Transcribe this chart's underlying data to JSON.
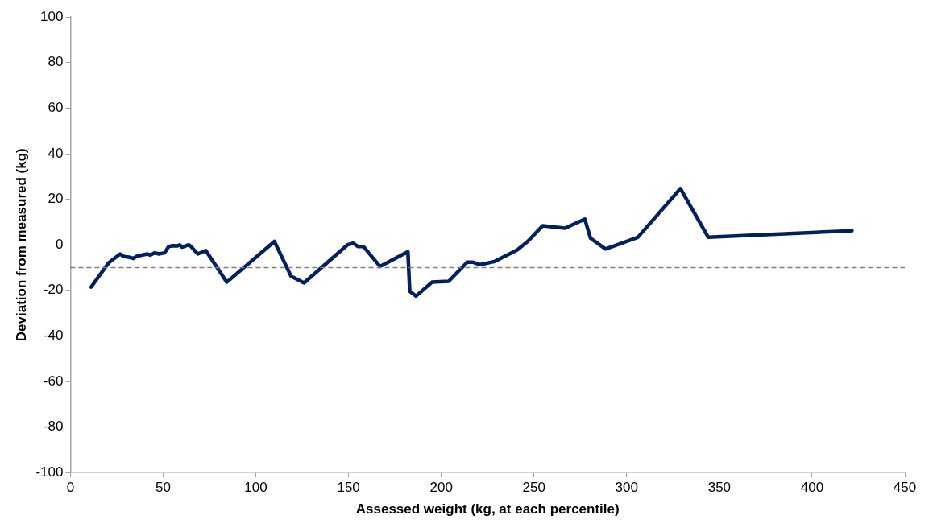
{
  "chart_data": {
    "type": "line",
    "xlabel": "Assessed weight (kg, at each percentile)",
    "ylabel": "Deviation from measured (kg)",
    "series": [
      {
        "color": "#002060",
        "x": [
          11.2,
          20.5,
          26.8,
          28.5,
          32,
          33.9,
          35.7,
          38.4,
          41.5,
          43,
          45.5,
          47.7,
          50.8,
          53,
          55.3,
          57.5,
          58.9,
          60.2,
          63.8,
          65,
          68.7,
          73,
          84.3,
          110,
          119,
          126,
          149.4,
          152.5,
          155,
          158,
          167,
          182,
          183,
          186.4,
          195,
          204,
          214,
          216.8,
          221,
          228.8,
          241,
          246.6,
          254.7,
          266.7,
          277.4,
          280.5,
          288.6,
          306,
          329,
          344,
          421.5
        ],
        "values": [
          -18.5,
          -8,
          -4,
          -5,
          -5.5,
          -6,
          -5,
          -4.5,
          -4,
          -4.5,
          -3.5,
          -4,
          -3.5,
          -0.7,
          -0.4,
          -0.5,
          0,
          -1,
          0,
          -0.7,
          -4,
          -2.5,
          -16.4,
          1.5,
          -13.8,
          -16.7,
          0,
          0.7,
          -0.7,
          -0.7,
          -9.5,
          -3,
          -20.4,
          -22.5,
          -16.4,
          -16,
          -7.6,
          -7.6,
          -8.7,
          -7.3,
          -2.2,
          1.5,
          8.4,
          7.3,
          11.3,
          2.9,
          -1.8,
          3.3,
          24.7,
          3.3,
          6.2
        ]
      }
    ],
    "xlim": [
      0,
      450
    ],
    "xticks": [
      0,
      50,
      100,
      150,
      200,
      250,
      300,
      350,
      400,
      450
    ],
    "ylim": [
      -100,
      100
    ],
    "yticks": [
      -100,
      -80,
      -60,
      -40,
      -20,
      0,
      20,
      40,
      60,
      80,
      100
    ],
    "grid": false,
    "legend": false,
    "marker": "none",
    "line_style": "solid",
    "ref_lines": [
      {
        "axis": "y",
        "value": -10,
        "color": "#808080",
        "line_style": "dashed"
      }
    ]
  }
}
